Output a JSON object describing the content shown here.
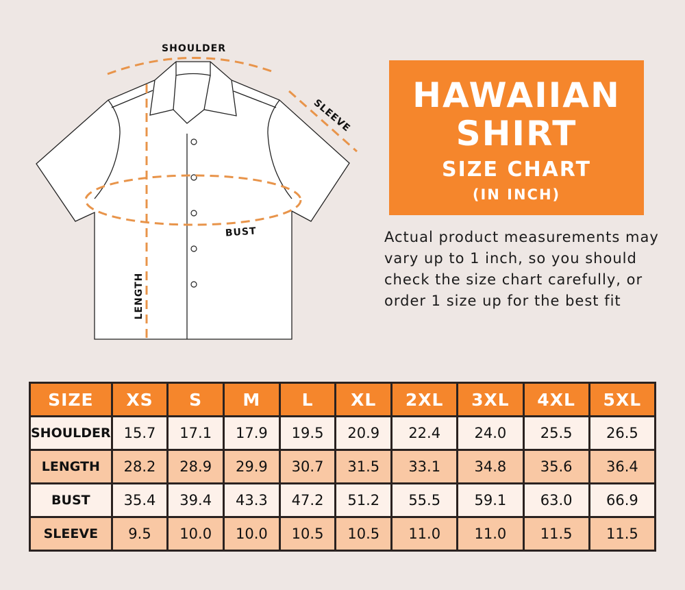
{
  "diagram": {
    "labels": {
      "shoulder": "SHOULDER",
      "sleeve": "SLEEVE",
      "bust": "BUST",
      "length": "LENGTH"
    },
    "colors": {
      "dash": "#e8944a",
      "outline": "#222222",
      "shirt": "#ffffff"
    }
  },
  "title": {
    "line1": "HAWAIIAN",
    "line2": "SHIRT",
    "line3": "SIZE CHART",
    "line4": "(IN INCH)"
  },
  "note": "Actual product measurements may vary up to 1 inch, so you should check the size chart carefully, or order 1 size up for the best fit",
  "colors": {
    "accent": "#f5862c",
    "row_light": "#fdf1ea",
    "row_dark": "#f9c8a4",
    "background": "#eee7e4"
  },
  "table": {
    "headers": [
      "SIZE",
      "XS",
      "S",
      "M",
      "L",
      "XL",
      "2XL",
      "3XL",
      "4XL",
      "5XL"
    ],
    "rows": [
      {
        "label": "SHOULDER",
        "values": [
          "15.7",
          "17.1",
          "17.9",
          "19.5",
          "20.9",
          "22.4",
          "24.0",
          "25.5",
          "26.5"
        ]
      },
      {
        "label": "LENGTH",
        "values": [
          "28.2",
          "28.9",
          "29.9",
          "30.7",
          "31.5",
          "33.1",
          "34.8",
          "35.6",
          "36.4"
        ]
      },
      {
        "label": "BUST",
        "values": [
          "35.4",
          "39.4",
          "43.3",
          "47.2",
          "51.2",
          "55.5",
          "59.1",
          "63.0",
          "66.9"
        ]
      },
      {
        "label": "SLEEVE",
        "values": [
          "9.5",
          "10.0",
          "10.0",
          "10.5",
          "10.5",
          "11.0",
          "11.0",
          "11.5",
          "11.5"
        ]
      }
    ]
  }
}
